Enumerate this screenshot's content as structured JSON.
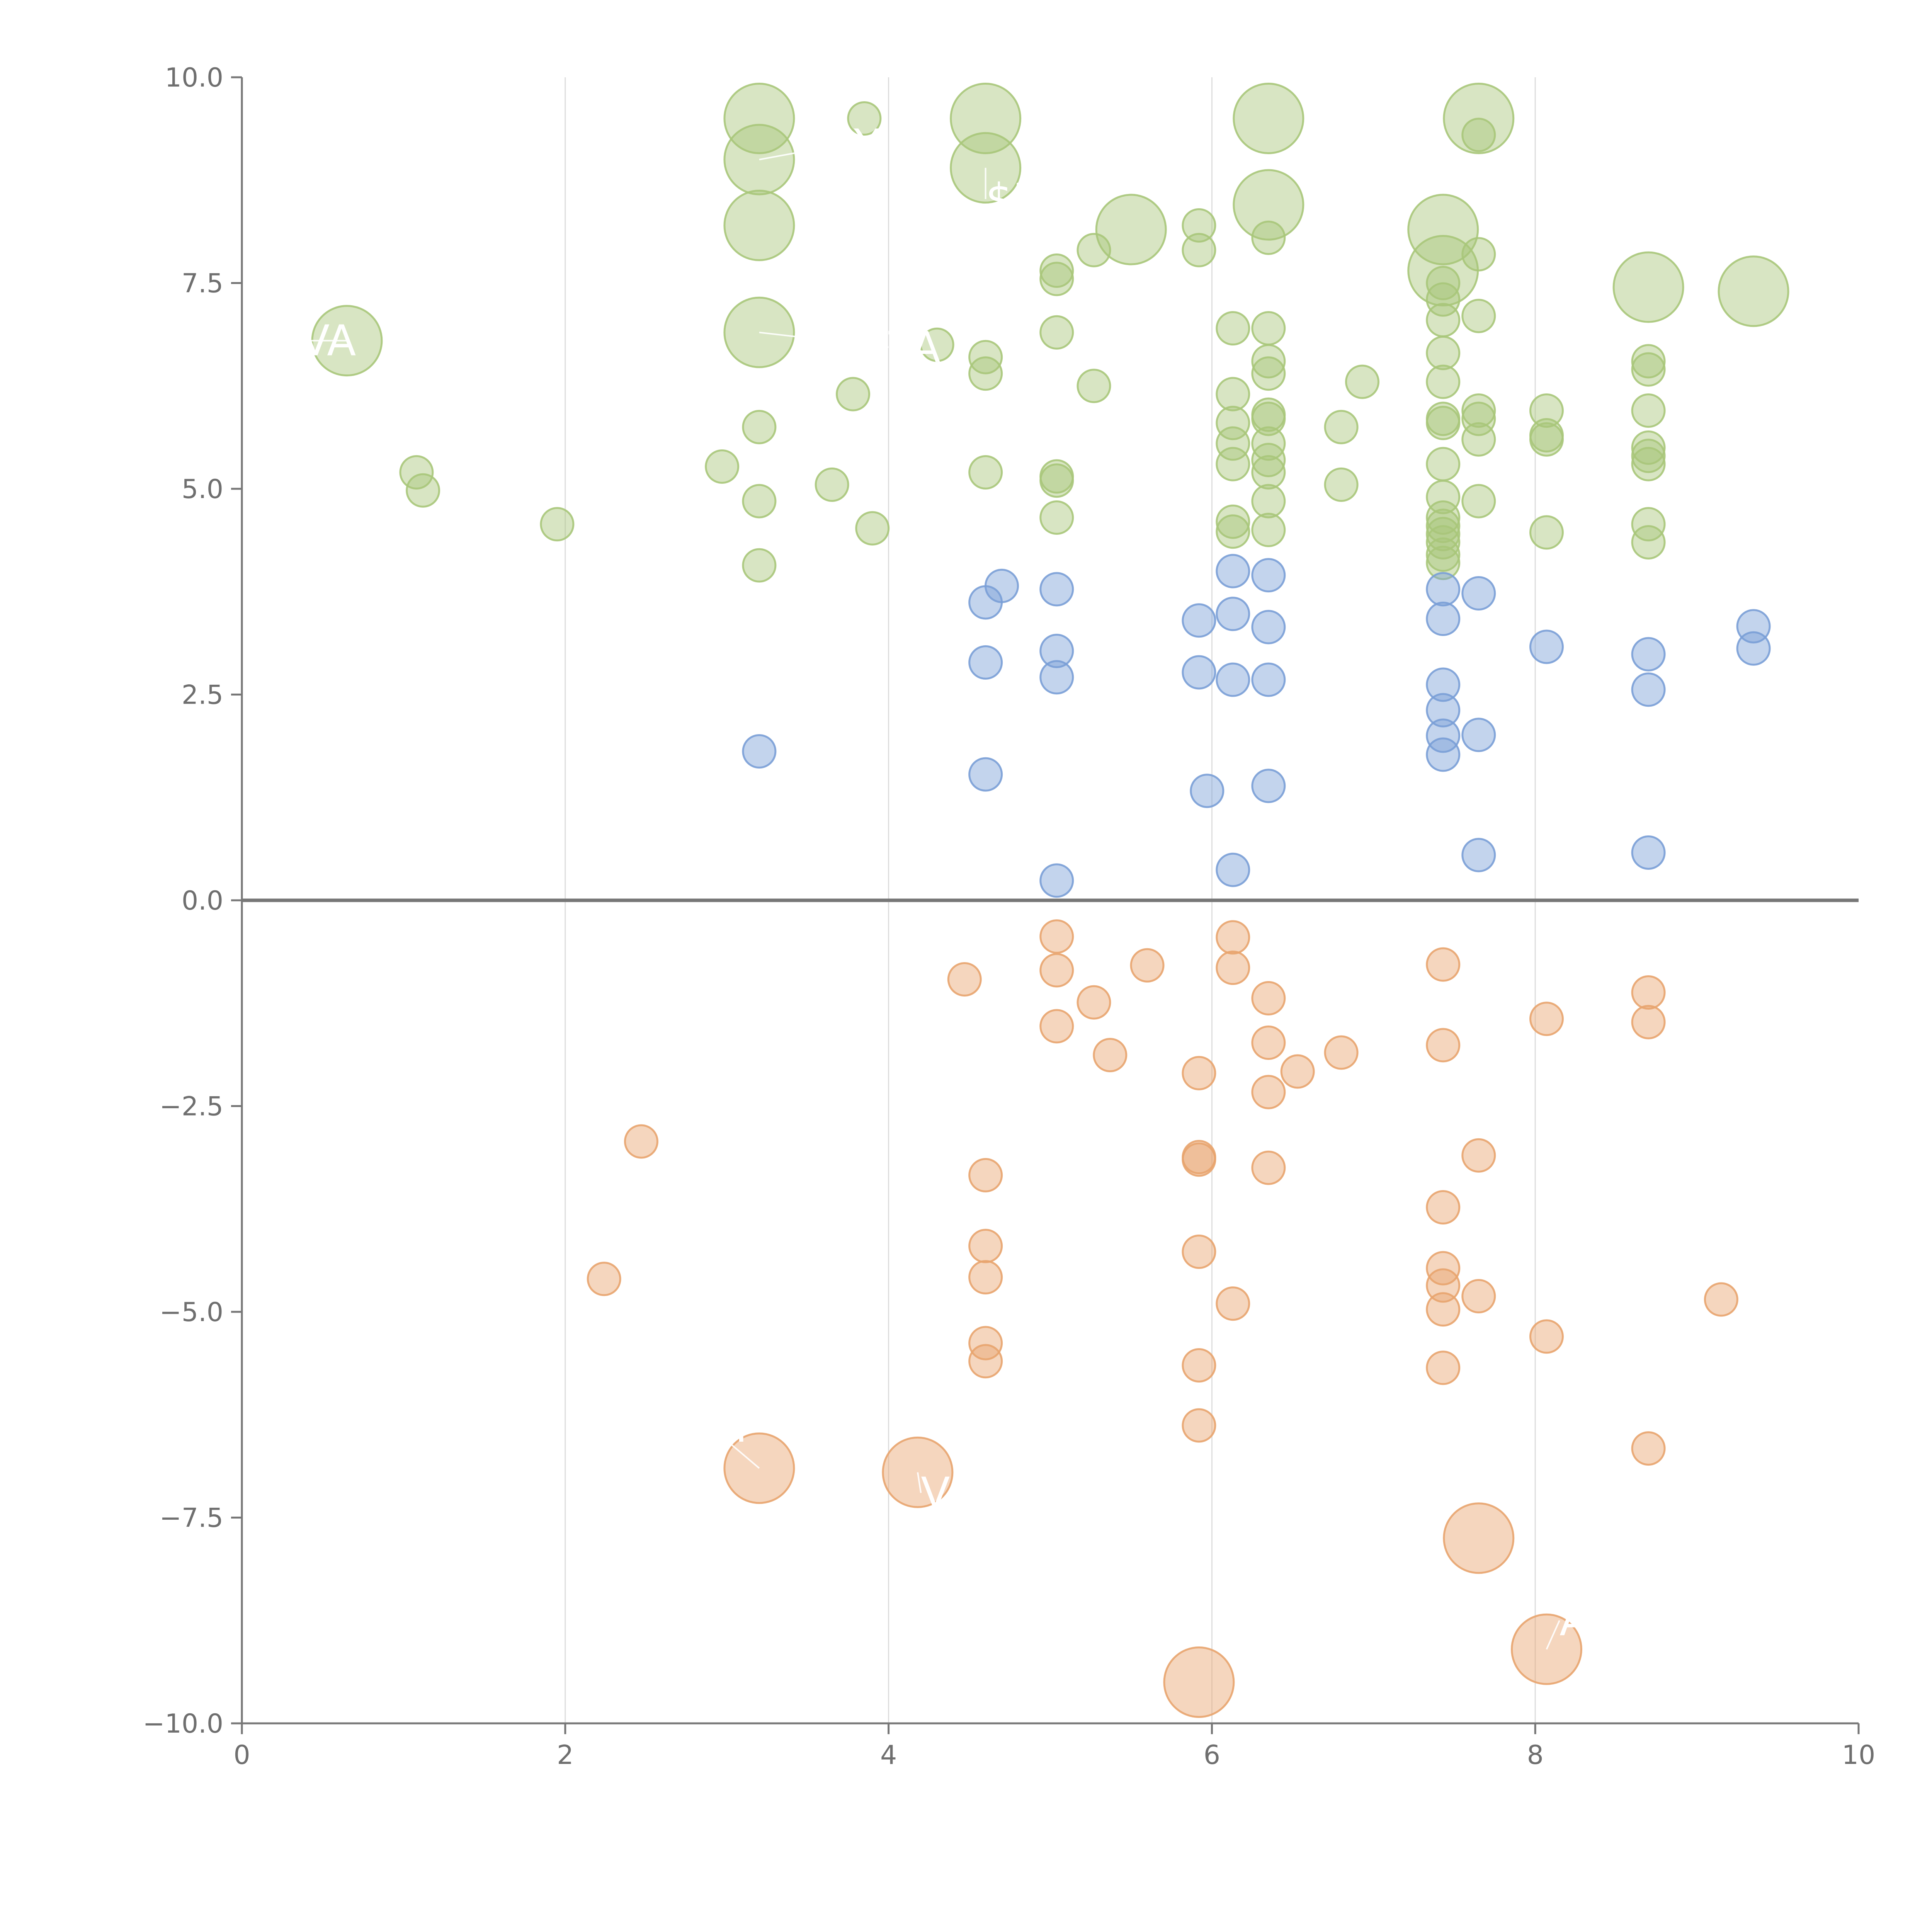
{
  "chart_data": {
    "type": "scatter",
    "title": "",
    "xlabel": "",
    "ylabel": "",
    "xlim": [
      0,
      10
    ],
    "ylim": [
      -10,
      10
    ],
    "grid": "vertical",
    "legend": "none",
    "x_ticks": [
      0,
      2,
      4,
      6,
      8,
      10
    ],
    "x_tick_labels": [
      "0",
      "2",
      "4",
      "6",
      "8",
      "10"
    ],
    "y_ticks": [
      -10,
      -7.5,
      -5,
      -2.5,
      0,
      2.5,
      5,
      7.5,
      10
    ],
    "y_tick_labels": [
      "−10.0",
      "−7.5",
      "−5.0",
      "−2.5",
      "0.0",
      "2.5",
      "5.0",
      "7.5",
      "10.0"
    ],
    "baseline_y": 0,
    "colors": {
      "green": "#a9c67a",
      "blue": "#7a9fd6",
      "orange": "#e8a46e",
      "axis": "#777777",
      "grid": "#dddddd",
      "label": "#ffffff"
    },
    "series": [
      {
        "name": "green",
        "color": "#a9c67a",
        "points": [
          [
            3.2,
            9.5,
            2
          ],
          [
            3.85,
            9.5,
            1
          ],
          [
            4.6,
            9.5,
            2
          ],
          [
            6.35,
            9.5,
            2
          ],
          [
            7.65,
            9.5,
            2
          ],
          [
            7.65,
            9.3,
            1
          ],
          [
            3.2,
            9.0,
            2
          ],
          [
            4.6,
            8.9,
            2
          ],
          [
            6.35,
            8.45,
            2
          ],
          [
            3.2,
            8.2,
            2
          ],
          [
            5.5,
            8.15,
            2
          ],
          [
            5.92,
            8.2,
            1
          ],
          [
            7.43,
            8.15,
            2
          ],
          [
            6.35,
            8.05,
            1
          ],
          [
            5.92,
            7.9,
            1
          ],
          [
            5.27,
            7.9,
            1
          ],
          [
            7.65,
            7.85,
            1
          ],
          [
            5.04,
            7.65,
            1
          ],
          [
            5.04,
            7.55,
            1
          ],
          [
            7.43,
            7.65,
            2
          ],
          [
            7.43,
            7.5,
            1
          ],
          [
            7.43,
            7.3,
            1
          ],
          [
            8.7,
            7.45,
            2
          ],
          [
            9.35,
            7.4,
            2
          ],
          [
            7.65,
            7.1,
            1
          ],
          [
            7.43,
            7.05,
            1
          ],
          [
            6.13,
            6.95,
            1
          ],
          [
            6.35,
            6.95,
            1
          ],
          [
            3.2,
            6.9,
            2
          ],
          [
            5.04,
            6.9,
            1
          ],
          [
            0.65,
            6.8,
            2
          ],
          [
            4.3,
            6.75,
            1
          ],
          [
            7.43,
            6.65,
            1
          ],
          [
            4.6,
            6.6,
            1
          ],
          [
            6.35,
            6.55,
            1
          ],
          [
            8.7,
            6.55,
            1
          ],
          [
            4.6,
            6.4,
            1
          ],
          [
            6.35,
            6.4,
            1
          ],
          [
            8.7,
            6.45,
            1
          ],
          [
            6.93,
            6.3,
            1
          ],
          [
            7.43,
            6.3,
            1
          ],
          [
            5.27,
            6.25,
            1
          ],
          [
            3.78,
            6.15,
            1
          ],
          [
            6.13,
            6.15,
            1
          ],
          [
            7.65,
            5.95,
            1
          ],
          [
            8.07,
            5.95,
            1
          ],
          [
            8.7,
            5.95,
            1
          ],
          [
            6.35,
            5.9,
            1
          ],
          [
            6.35,
            5.85,
            1
          ],
          [
            7.43,
            5.85,
            1
          ],
          [
            7.43,
            5.8,
            1
          ],
          [
            7.65,
            5.85,
            1
          ],
          [
            6.13,
            5.8,
            1
          ],
          [
            3.2,
            5.75,
            1
          ],
          [
            6.8,
            5.75,
            1
          ],
          [
            8.07,
            5.65,
            1
          ],
          [
            8.07,
            5.6,
            1
          ],
          [
            6.13,
            5.55,
            1
          ],
          [
            6.35,
            5.55,
            1
          ],
          [
            7.65,
            5.6,
            1
          ],
          [
            8.7,
            5.5,
            1
          ],
          [
            8.7,
            5.4,
            1
          ],
          [
            6.35,
            5.35,
            1
          ],
          [
            8.7,
            5.3,
            1
          ],
          [
            6.13,
            5.3,
            1
          ],
          [
            7.43,
            5.3,
            1
          ],
          [
            2.97,
            5.27,
            1
          ],
          [
            6.35,
            5.2,
            1
          ],
          [
            4.6,
            5.2,
            1
          ],
          [
            1.08,
            5.2,
            1
          ],
          [
            5.04,
            5.15,
            1
          ],
          [
            5.04,
            5.1,
            1
          ],
          [
            3.65,
            5.05,
            1
          ],
          [
            6.8,
            5.05,
            1
          ],
          [
            1.12,
            4.98,
            1
          ],
          [
            7.43,
            4.9,
            1
          ],
          [
            3.2,
            4.85,
            1
          ],
          [
            6.35,
            4.85,
            1
          ],
          [
            7.65,
            4.85,
            1
          ],
          [
            5.04,
            4.65,
            1
          ],
          [
            7.43,
            4.65,
            1
          ],
          [
            1.95,
            4.57,
            1
          ],
          [
            8.7,
            4.57,
            1
          ],
          [
            6.13,
            4.6,
            1
          ],
          [
            7.43,
            4.55,
            1
          ],
          [
            3.9,
            4.52,
            1
          ],
          [
            6.13,
            4.48,
            1
          ],
          [
            6.35,
            4.5,
            1
          ],
          [
            8.07,
            4.47,
            1
          ],
          [
            7.43,
            4.45,
            1
          ],
          [
            7.43,
            4.35,
            1
          ],
          [
            8.7,
            4.35,
            1
          ],
          [
            7.43,
            4.2,
            1
          ],
          [
            7.43,
            4.1,
            1
          ],
          [
            3.2,
            4.07,
            1
          ]
        ]
      },
      {
        "name": "blue",
        "color": "#7a9fd6",
        "points": [
          [
            6.13,
            4.0,
            1
          ],
          [
            6.35,
            3.95,
            1
          ],
          [
            4.7,
            3.82,
            1
          ],
          [
            5.04,
            3.78,
            1
          ],
          [
            7.43,
            3.78,
            1
          ],
          [
            7.65,
            3.73,
            1
          ],
          [
            4.6,
            3.62,
            1
          ],
          [
            6.13,
            3.48,
            1
          ],
          [
            5.92,
            3.4,
            1
          ],
          [
            7.43,
            3.42,
            1
          ],
          [
            6.35,
            3.32,
            1
          ],
          [
            9.35,
            3.33,
            1
          ],
          [
            8.07,
            3.08,
            1
          ],
          [
            5.04,
            3.03,
            1
          ],
          [
            9.35,
            3.06,
            1
          ],
          [
            8.7,
            2.99,
            1
          ],
          [
            4.6,
            2.89,
            1
          ],
          [
            5.92,
            2.77,
            1
          ],
          [
            5.04,
            2.71,
            1
          ],
          [
            6.13,
            2.68,
            1
          ],
          [
            6.35,
            2.68,
            1
          ],
          [
            7.43,
            2.62,
            1
          ],
          [
            8.7,
            2.56,
            1
          ],
          [
            7.43,
            2.31,
            1
          ],
          [
            7.43,
            2.0,
            1
          ],
          [
            7.65,
            2.01,
            1
          ],
          [
            3.2,
            1.81,
            1
          ],
          [
            7.43,
            1.77,
            1
          ],
          [
            4.6,
            1.53,
            1
          ],
          [
            6.35,
            1.39,
            1
          ],
          [
            5.97,
            1.33,
            1
          ],
          [
            7.65,
            0.55,
            1
          ],
          [
            8.7,
            0.58,
            1
          ],
          [
            6.13,
            0.37,
            1
          ],
          [
            5.04,
            0.24,
            1
          ]
        ]
      },
      {
        "name": "orange",
        "color": "#e8a46e",
        "points": [
          [
            5.04,
            -0.44,
            1
          ],
          [
            6.13,
            -0.45,
            1
          ],
          [
            7.43,
            -0.78,
            1
          ],
          [
            5.6,
            -0.79,
            1
          ],
          [
            6.13,
            -0.82,
            1
          ],
          [
            5.04,
            -0.85,
            1
          ],
          [
            4.47,
            -0.96,
            1
          ],
          [
            8.7,
            -1.12,
            1
          ],
          [
            6.35,
            -1.19,
            1
          ],
          [
            5.27,
            -1.24,
            1
          ],
          [
            8.07,
            -1.44,
            1
          ],
          [
            8.7,
            -1.48,
            1
          ],
          [
            5.04,
            -1.53,
            1
          ],
          [
            6.35,
            -1.73,
            1
          ],
          [
            7.43,
            -1.76,
            1
          ],
          [
            6.8,
            -1.85,
            1
          ],
          [
            5.37,
            -1.88,
            1
          ],
          [
            6.53,
            -2.08,
            1
          ],
          [
            5.92,
            -2.1,
            1
          ],
          [
            6.35,
            -2.33,
            1
          ],
          [
            2.47,
            -2.93,
            1
          ],
          [
            7.65,
            -3.1,
            1
          ],
          [
            5.92,
            -3.12,
            1
          ],
          [
            5.92,
            -3.15,
            1
          ],
          [
            6.35,
            -3.25,
            1
          ],
          [
            4.6,
            -3.34,
            1
          ],
          [
            7.43,
            -3.73,
            1
          ],
          [
            4.6,
            -4.2,
            1
          ],
          [
            5.92,
            -4.27,
            1
          ],
          [
            7.43,
            -4.47,
            1
          ],
          [
            4.6,
            -4.58,
            1
          ],
          [
            2.24,
            -4.6,
            1
          ],
          [
            7.43,
            -4.68,
            1
          ],
          [
            7.65,
            -4.81,
            1
          ],
          [
            9.15,
            -4.85,
            1
          ],
          [
            6.13,
            -4.9,
            1
          ],
          [
            7.43,
            -4.97,
            1
          ],
          [
            8.07,
            -5.3,
            1
          ],
          [
            4.6,
            -5.38,
            1
          ],
          [
            4.6,
            -5.6,
            1
          ],
          [
            5.92,
            -5.65,
            1
          ],
          [
            7.43,
            -5.68,
            1
          ],
          [
            5.92,
            -6.38,
            1
          ],
          [
            8.7,
            -6.66,
            1
          ],
          [
            3.2,
            -6.9,
            2
          ],
          [
            4.18,
            -6.95,
            2
          ],
          [
            7.65,
            -7.75,
            2
          ],
          [
            8.07,
            -9.1,
            2
          ],
          [
            5.92,
            -9.5,
            2
          ]
        ]
      }
    ],
    "labels": [
      {
        "text": "RAY",
        "x": 3.7,
        "y": 9.18,
        "anchor_x": 3.2,
        "anchor_y": 9.0,
        "anchor": "middle"
      },
      {
        "text": "$M",
        "x": 4.6,
        "y": 8.52,
        "anchor_x": 4.6,
        "anchor_y": 8.9,
        "anchor": "start"
      },
      {
        "text": "AVA",
        "x": 0.2,
        "y": 6.8,
        "anchor_x": 0.65,
        "anchor_y": 6.8,
        "anchor": "start"
      },
      {
        "text": "TA",
        "x": 4.0,
        "y": 6.72,
        "anchor_x": 3.2,
        "anchor_y": 6.9,
        "anchor": "start"
      },
      {
        "text": "M",
        "x": 2.9,
        "y": -6.4,
        "anchor_x": 3.2,
        "anchor_y": -6.9,
        "anchor": "start"
      },
      {
        "text": "VI",
        "x": 4.2,
        "y": -7.2,
        "anchor_x": 4.18,
        "anchor_y": -6.95,
        "anchor": "start"
      },
      {
        "text": "A",
        "x": 8.15,
        "y": -8.75,
        "anchor_x": 8.07,
        "anchor_y": -9.1,
        "anchor": "start"
      }
    ]
  }
}
